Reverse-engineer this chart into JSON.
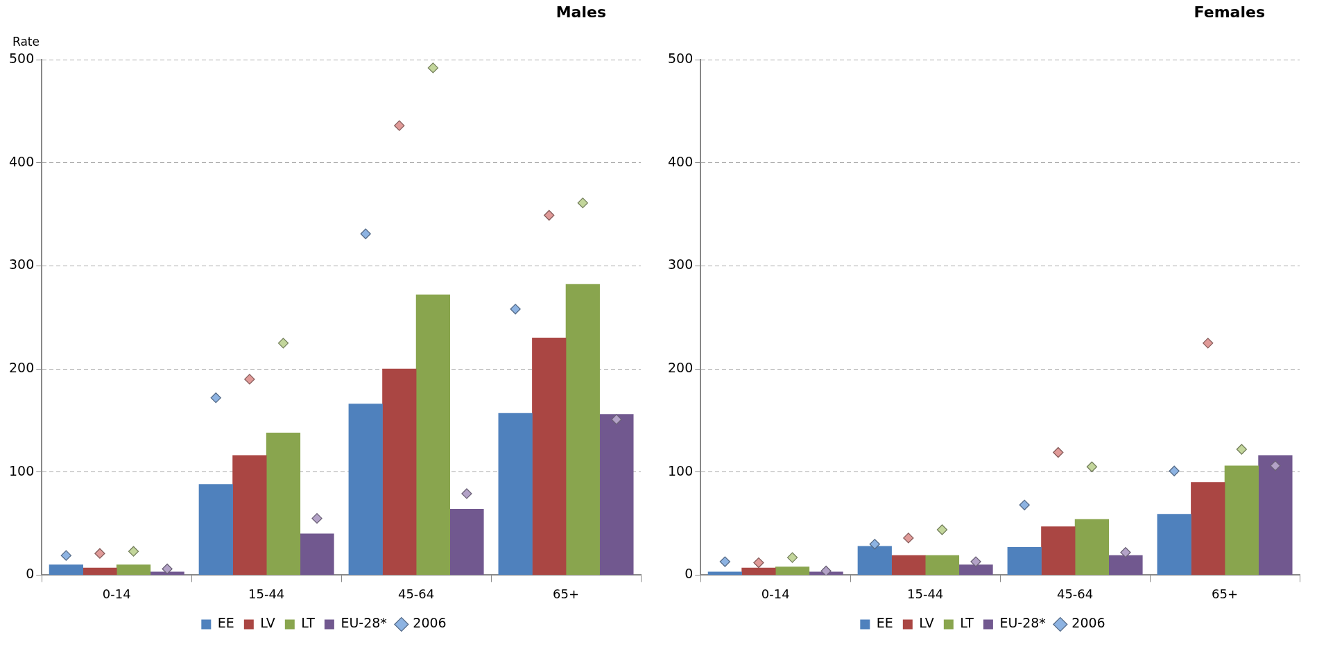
{
  "chart_data": [
    {
      "type": "bar",
      "title": "Males",
      "ylabel": "Rate",
      "categories": [
        "0-14",
        "15-44",
        "45-64",
        "65+"
      ],
      "ylim": [
        0,
        500
      ],
      "yticks": [
        0,
        100,
        200,
        300,
        400,
        500
      ],
      "grid": "y",
      "legend": "bottom",
      "marker": "diamond",
      "series": [
        {
          "name": "EE",
          "color": "#4f81bd",
          "values": [
            10,
            88,
            166,
            157
          ]
        },
        {
          "name": "LV",
          "color": "#aa4643",
          "values": [
            7,
            116,
            200,
            230
          ]
        },
        {
          "name": "LT",
          "color": "#89a54e",
          "values": [
            10,
            138,
            272,
            282
          ]
        },
        {
          "name": "EU-28*",
          "color": "#71588f",
          "values": [
            3,
            40,
            64,
            156
          ]
        },
        {
          "type": "scatter",
          "name": "2006",
          "color": "#8db3e2",
          "x": [
            "0-14",
            "15-44",
            "45-64",
            "65+"
          ],
          "values": [
            19,
            172,
            331,
            258
          ]
        },
        {
          "type": "scatter",
          "color": "#e09a98",
          "x": [
            "0-14",
            "15-44",
            "45-64",
            "65+"
          ],
          "values": [
            21,
            190,
            436,
            349
          ]
        },
        {
          "type": "scatter",
          "color": "#c3d69b",
          "x": [
            "0-14",
            "15-44",
            "45-64",
            "65+"
          ],
          "values": [
            23,
            225,
            492,
            361
          ]
        },
        {
          "type": "scatter",
          "color": "#b3a2c7",
          "x": [
            "0-14",
            "15-44",
            "45-64",
            "65+"
          ],
          "values": [
            6,
            55,
            79,
            151
          ]
        }
      ]
    },
    {
      "type": "bar",
      "title": "Females",
      "categories": [
        "0-14",
        "15-44",
        "45-64",
        "65+"
      ],
      "ylim": [
        0,
        500
      ],
      "yticks": [
        0,
        100,
        200,
        300,
        400,
        500
      ],
      "grid": "y",
      "legend": "bottom",
      "marker": "diamond",
      "series": [
        {
          "name": "EE",
          "color": "#4f81bd",
          "values": [
            3,
            28,
            27,
            59
          ]
        },
        {
          "name": "LV",
          "color": "#aa4643",
          "values": [
            7,
            19,
            47,
            90
          ]
        },
        {
          "name": "LT",
          "color": "#89a54e",
          "values": [
            8,
            19,
            54,
            106
          ]
        },
        {
          "name": "EU-28*",
          "color": "#71588f",
          "values": [
            3,
            10,
            19,
            116
          ]
        },
        {
          "type": "scatter",
          "name": "2006",
          "color": "#8db3e2",
          "x": [
            "0-14",
            "15-44",
            "45-64",
            "65+"
          ],
          "values": [
            13,
            30,
            68,
            101
          ]
        },
        {
          "type": "scatter",
          "color": "#e09a98",
          "x": [
            "0-14",
            "15-44",
            "45-64",
            "65+"
          ],
          "values": [
            12,
            36,
            119,
            225
          ]
        },
        {
          "type": "scatter",
          "color": "#c3d69b",
          "x": [
            "0-14",
            "15-44",
            "45-64",
            "65+"
          ],
          "values": [
            17,
            44,
            105,
            122
          ]
        },
        {
          "type": "scatter",
          "color": "#b3a2c7",
          "x": [
            "0-14",
            "15-44",
            "45-64",
            "65+"
          ],
          "values": [
            4,
            13,
            22,
            106
          ]
        }
      ]
    }
  ]
}
